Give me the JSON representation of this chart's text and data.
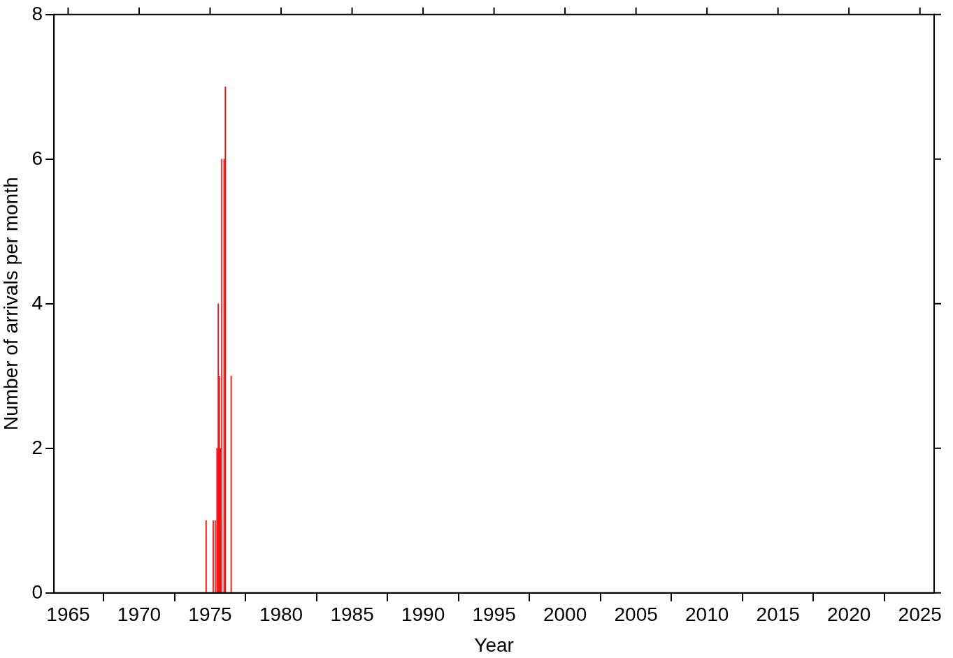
{
  "chart_data": {
    "type": "bar",
    "xlabel": "Year",
    "ylabel": "Number of arrivals per month",
    "x": [
      1974.72,
      1975.22,
      1975.36,
      1975.48,
      1975.57,
      1975.65,
      1975.72,
      1975.82,
      1975.98,
      1976.07,
      1976.48
    ],
    "values": [
      1,
      1,
      1,
      2,
      4,
      3,
      2,
      6,
      6,
      7,
      3
    ],
    "color": "#ff0000",
    "xlim": [
      1964,
      2026
    ],
    "xticks": [
      1965,
      1970,
      1975,
      1980,
      1985,
      1990,
      1995,
      2000,
      2005,
      2010,
      2015,
      2020,
      2025
    ],
    "ylim": [
      0,
      8
    ],
    "yticks": [
      0,
      2,
      4,
      6,
      8
    ],
    "grid": false,
    "legend": false
  }
}
